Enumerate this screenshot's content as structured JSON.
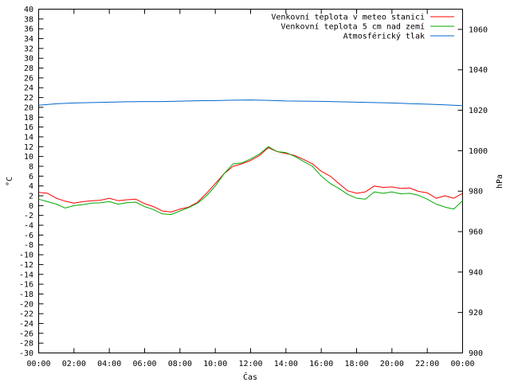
{
  "chart_data": {
    "type": "line",
    "title": "",
    "xlabel": "Čas",
    "ylabel_left": "°C",
    "ylabel_right": "hPa",
    "x_ticks": [
      "00:00",
      "02:00",
      "04:00",
      "06:00",
      "08:00",
      "10:00",
      "12:00",
      "14:00",
      "16:00",
      "18:00",
      "20:00",
      "22:00",
      "00:00"
    ],
    "x_range_hours": [
      0,
      24
    ],
    "ylim_left": [
      -30,
      40
    ],
    "y_ticks_left": [
      "40",
      "38",
      "36",
      "34",
      "32",
      "30",
      "28",
      "26",
      "24",
      "22",
      "20",
      "18",
      "16",
      "14",
      "12",
      "10",
      "8",
      "6",
      "4",
      "2",
      "0",
      "-2",
      "-4",
      "-6",
      "-8",
      "-10",
      "-12",
      "-14",
      "-16",
      "-18",
      "-20",
      "-22",
      "-24",
      "-26",
      "-28",
      "-30"
    ],
    "ylim_right": [
      900,
      1070
    ],
    "y_ticks_right": [
      "1060",
      "1040",
      "1020",
      "1000",
      "980",
      "960",
      "940",
      "920",
      "900"
    ],
    "grid": false,
    "legend_position": "top-right",
    "series": [
      {
        "name": "Venkovní teplota v meteo stanici",
        "color": "#ff0000",
        "axis": "left",
        "x": [
          0,
          0.5,
          1,
          1.5,
          2,
          2.5,
          3,
          3.5,
          4,
          4.5,
          5,
          5.5,
          6,
          6.5,
          7,
          7.5,
          8,
          8.5,
          9,
          9.5,
          10,
          10.5,
          11,
          11.5,
          12,
          12.5,
          13,
          13.5,
          14,
          14.5,
          15,
          15.5,
          16,
          16.5,
          17,
          17.5,
          18,
          18.5,
          19,
          19.5,
          20,
          20.5,
          21,
          21.5,
          22,
          22.5,
          23,
          23.5,
          24
        ],
        "values": [
          2.7,
          2.5,
          1.5,
          0.9,
          0.5,
          0.8,
          1.0,
          1.1,
          1.5,
          1.0,
          1.2,
          1.3,
          0.4,
          -0.2,
          -1.1,
          -1.3,
          -0.7,
          -0.3,
          0.7,
          2.5,
          4.5,
          6.5,
          8.0,
          8.5,
          9.2,
          10.2,
          11.8,
          11.0,
          10.6,
          10.2,
          9.4,
          8.5,
          7.0,
          6.0,
          4.5,
          3.0,
          2.5,
          2.8,
          4.0,
          3.7,
          3.8,
          3.5,
          3.6,
          2.9,
          2.6,
          1.5,
          2.0,
          1.5,
          2.5
        ]
      },
      {
        "name": "Venkovní teplota 5 cm nad zemí",
        "color": "#00aa00",
        "axis": "left",
        "x": [
          0,
          0.5,
          1,
          1.5,
          2,
          2.5,
          3,
          3.5,
          4,
          4.5,
          5,
          5.5,
          6,
          6.5,
          7,
          7.5,
          8,
          8.5,
          9,
          9.5,
          10,
          10.5,
          11,
          11.5,
          12,
          12.5,
          13,
          13.5,
          14,
          14.5,
          15,
          15.5,
          16,
          16.5,
          17,
          17.5,
          18,
          18.5,
          19,
          19.5,
          20,
          20.5,
          21,
          21.5,
          22,
          22.5,
          23,
          23.5,
          24
        ],
        "values": [
          1.3,
          0.8,
          0.3,
          -0.5,
          0.0,
          0.2,
          0.5,
          0.6,
          0.8,
          0.3,
          0.6,
          0.7,
          -0.2,
          -0.8,
          -1.7,
          -1.8,
          -1.1,
          -0.4,
          0.5,
          2.0,
          4.0,
          6.5,
          8.5,
          8.7,
          9.5,
          10.5,
          12.0,
          11.0,
          10.8,
          10.0,
          9.0,
          8.0,
          6.0,
          4.5,
          3.5,
          2.3,
          1.5,
          1.3,
          2.8,
          2.5,
          2.8,
          2.4,
          2.5,
          2.1,
          1.3,
          0.3,
          -0.3,
          -0.7,
          1.0
        ]
      },
      {
        "name": "Atmosférický tlak",
        "color": "#0066cc",
        "axis": "right",
        "x": [
          0,
          1,
          2,
          3,
          4,
          5,
          6,
          7,
          8,
          9,
          10,
          11,
          12,
          13,
          14,
          15,
          16,
          17,
          18,
          19,
          20,
          21,
          22,
          23,
          24
        ],
        "values": [
          1022.5,
          1023.2,
          1023.6,
          1023.8,
          1024.0,
          1024.2,
          1024.3,
          1024.3,
          1024.5,
          1024.7,
          1024.8,
          1025.0,
          1025.1,
          1024.9,
          1024.6,
          1024.5,
          1024.4,
          1024.2,
          1024.0,
          1023.8,
          1023.6,
          1023.3,
          1023.0,
          1022.7,
          1022.3
        ]
      }
    ]
  }
}
